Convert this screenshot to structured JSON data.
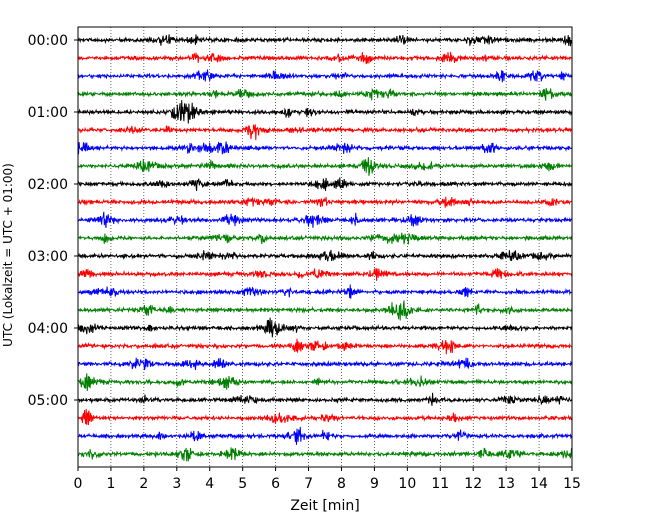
{
  "chart_data": {
    "type": "line",
    "title": "",
    "xlabel": "Zeit  [min]",
    "ylabel": "UTC (Lokalzeit = UTC + 01:00)",
    "xlim": [
      0,
      15
    ],
    "x_ticks": [
      "0",
      "1",
      "2",
      "3",
      "4",
      "5",
      "6",
      "7",
      "8",
      "9",
      "10",
      "11",
      "12",
      "13",
      "14",
      "15"
    ],
    "y_ticks": [
      "00:00",
      "01:00",
      "02:00",
      "03:00",
      "04:00",
      "05:00"
    ],
    "trace_interval_min": 15,
    "trace_start_times": [
      "00:00",
      "00:15",
      "00:30",
      "00:45",
      "01:00",
      "01:15",
      "01:30",
      "01:45",
      "02:00",
      "02:15",
      "02:30",
      "02:45",
      "03:00",
      "03:15",
      "03:30",
      "03:45",
      "04:00",
      "04:15",
      "04:30",
      "04:45",
      "05:00",
      "05:15",
      "05:30",
      "05:45"
    ],
    "trace_colors": [
      "#000000",
      "#ff0000",
      "#0000ff",
      "#008000"
    ],
    "grid_x": "dotted",
    "legend": "none"
  }
}
